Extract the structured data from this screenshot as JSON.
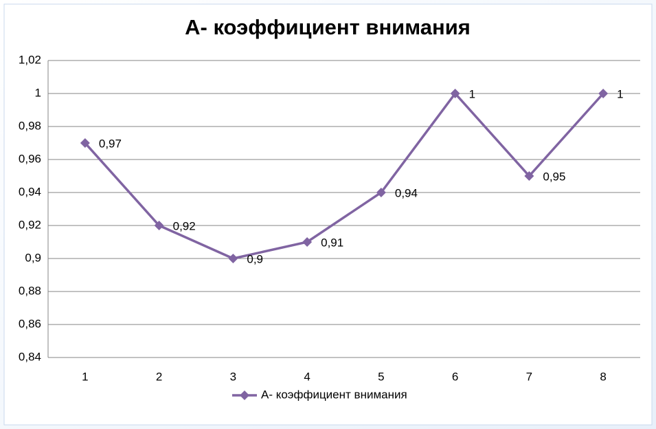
{
  "chart_data": {
    "type": "line",
    "title": "А- коэффициент внимания",
    "categories": [
      "1",
      "2",
      "3",
      "4",
      "5",
      "6",
      "7",
      "8"
    ],
    "series": [
      {
        "name": "А- коэффициент внимания",
        "color": "#8064a2",
        "values": [
          0.97,
          0.92,
          0.9,
          0.91,
          0.94,
          1,
          0.95,
          1
        ],
        "value_labels": [
          "0,97",
          "0,92",
          "0,9",
          "0,91",
          "0,94",
          "1",
          "0,95",
          "1"
        ]
      }
    ],
    "ylim": [
      0.84,
      1.02
    ],
    "yticks": [
      {
        "value": 0.84,
        "label": "0,84"
      },
      {
        "value": 0.86,
        "label": "0,86"
      },
      {
        "value": 0.88,
        "label": "0,88"
      },
      {
        "value": 0.9,
        "label": "0,9"
      },
      {
        "value": 0.92,
        "label": "0,92"
      },
      {
        "value": 0.94,
        "label": "0,94"
      },
      {
        "value": 0.96,
        "label": "0,96"
      },
      {
        "value": 0.98,
        "label": "0,98"
      },
      1,
      {
        "value": 1.02,
        "label": "1,02"
      }
    ],
    "grid": true,
    "legend": "bottom"
  }
}
